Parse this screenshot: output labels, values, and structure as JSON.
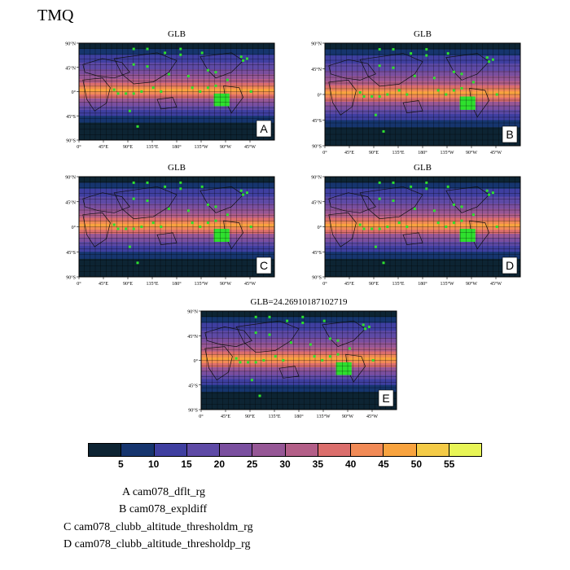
{
  "figure_title": "TMQ",
  "panels": [
    {
      "id": "A",
      "title": "GLB"
    },
    {
      "id": "B",
      "title": "GLB"
    },
    {
      "id": "C",
      "title": "GLB"
    },
    {
      "id": "D",
      "title": "GLB"
    },
    {
      "id": "E",
      "title": "GLB=24.26910187102719"
    }
  ],
  "lat_ticks": [
    "90°N",
    "45°N",
    "0°",
    "45°S",
    "90°S"
  ],
  "lon_ticks": [
    "0°",
    "45°E",
    "90°E",
    "135°E",
    "180°",
    "135°W",
    "90°W",
    "45°W"
  ],
  "colorbar": {
    "labels": [
      "5",
      "10",
      "15",
      "20",
      "25",
      "30",
      "35",
      "40",
      "45",
      "50",
      "55"
    ],
    "colors": [
      "#0d2433",
      "#16356e",
      "#3f3fa0",
      "#5e4aa6",
      "#7a4f9f",
      "#965796",
      "#b35f88",
      "#db6e6c",
      "#f18a56",
      "#f8a33f",
      "#f4cb47",
      "#e8f556"
    ]
  },
  "legend": [
    "A  cam078_dflt_rg",
    "B  cam078_expldiff",
    "C  cam078_clubb_altitude_thresholdm_rg",
    "D  cam078_clubb_altitude_thresholdp_rg"
  ],
  "marker_color": "#2ee02e"
}
